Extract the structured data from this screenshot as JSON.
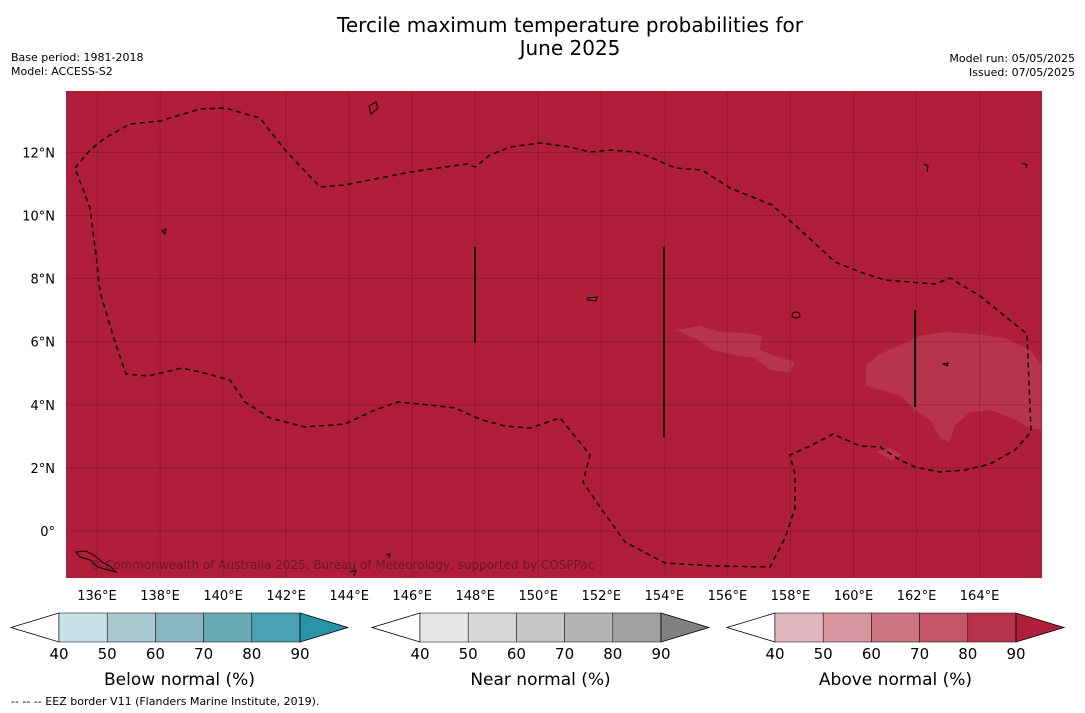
{
  "title_line1": "Tercile maximum temperature probabilities for",
  "title_line2": "June 2025",
  "meta_left": {
    "base_period": "Base period: 1981-2018",
    "model": "Model: ACCESS-S2"
  },
  "meta_right": {
    "model_run": "Model run: 05/05/2025",
    "issued": "Issued: 07/05/2025"
  },
  "map": {
    "background_color": "#b01e3a",
    "secondary_color": "#b8344c",
    "lon_labels": [
      "136°E",
      "138°E",
      "140°E",
      "142°E",
      "144°E",
      "146°E",
      "148°E",
      "150°E",
      "152°E",
      "154°E",
      "156°E",
      "158°E",
      "160°E",
      "162°E",
      "164°E"
    ],
    "lat_labels": [
      "12°N",
      "10°N",
      "8°N",
      "6°N",
      "4°N",
      "2°N",
      "0°"
    ],
    "copyright": "© Commonwealth of Australia 2025, Bureau of Meteorology, supported by COSPPac"
  },
  "colorbars": [
    {
      "label": "Below normal (%)",
      "ticks": [
        "40",
        "50",
        "60",
        "70",
        "80",
        "90"
      ],
      "colors": [
        "#ffffff",
        "#c9e1e7",
        "#a9c8cf",
        "#8ab6c1",
        "#6aaab7",
        "#4ba0b1",
        "#2a93a8"
      ]
    },
    {
      "label": "Near normal (%)",
      "ticks": [
        "40",
        "50",
        "60",
        "70",
        "80",
        "90"
      ],
      "colors": [
        "#ffffff",
        "#e6e6e6",
        "#d7d7d7",
        "#c8c8c8",
        "#b4b4b4",
        "#a0a0a0",
        "#808080"
      ]
    },
    {
      "label": "Above normal (%)",
      "ticks": [
        "40",
        "50",
        "60",
        "70",
        "80",
        "90"
      ],
      "colors": [
        "#ffffff",
        "#e1b5bd",
        "#d6959f",
        "#cb7582",
        "#c25566",
        "#b8344c",
        "#b01e3a"
      ]
    }
  ],
  "footnote": "--  --  -- EEZ border V11 (Flanders Marine Institute, 2019)."
}
